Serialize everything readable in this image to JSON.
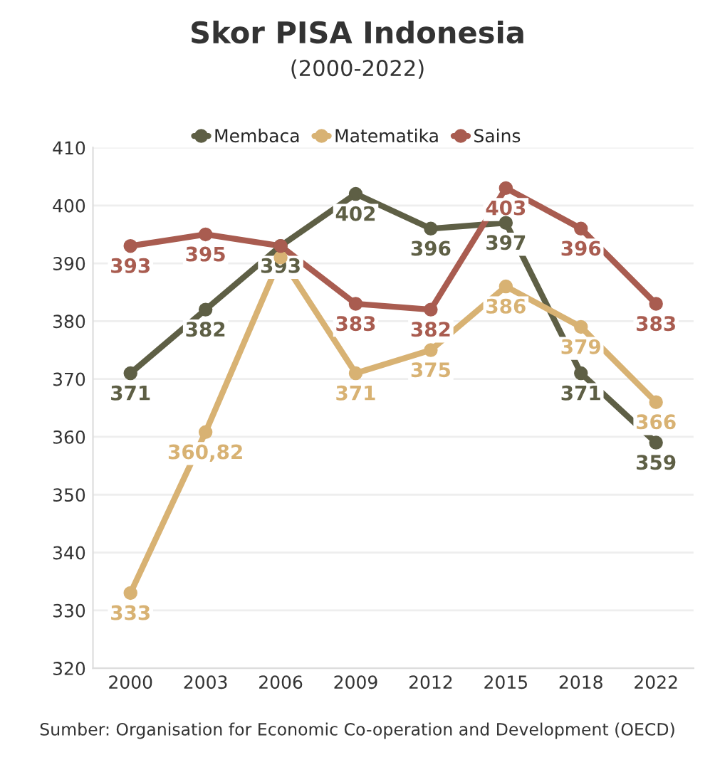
{
  "chart_data": {
    "type": "line",
    "title": "Skor PISA Indonesia",
    "subtitle": "(2000-2022)",
    "categories": [
      "2000",
      "2003",
      "2006",
      "2009",
      "2012",
      "2015",
      "2018",
      "2022"
    ],
    "series": [
      {
        "name": "Membaca",
        "color": "#5e5f45",
        "values": [
          371,
          382,
          393,
          402,
          396,
          397,
          371,
          359
        ],
        "value_labels": [
          "371",
          "382",
          "393",
          "402",
          "396",
          "397",
          "371",
          "359"
        ]
      },
      {
        "name": "Matematika",
        "color": "#d8b273",
        "values": [
          333,
          360.82,
          391,
          371,
          375,
          386,
          379,
          366
        ],
        "value_labels": [
          "333",
          "360,82",
          null,
          "371",
          "375",
          "386",
          "379",
          "366"
        ]
      },
      {
        "name": "Sains",
        "color": "#a95c50",
        "values": [
          393,
          395,
          393,
          383,
          382,
          403,
          396,
          383
        ],
        "value_labels": [
          "393",
          "395",
          null,
          "383",
          "382",
          "403",
          "396",
          "383"
        ]
      }
    ],
    "ylim": [
      320,
      410
    ],
    "yticks": [
      320,
      330,
      340,
      350,
      360,
      370,
      380,
      390,
      400,
      410
    ],
    "grid": "y",
    "legend": "top",
    "marker": "circle",
    "line_style": "solid",
    "annotations": [
      "Sumber: Organisation for Economic Co-operation and Development (OECD)"
    ]
  }
}
